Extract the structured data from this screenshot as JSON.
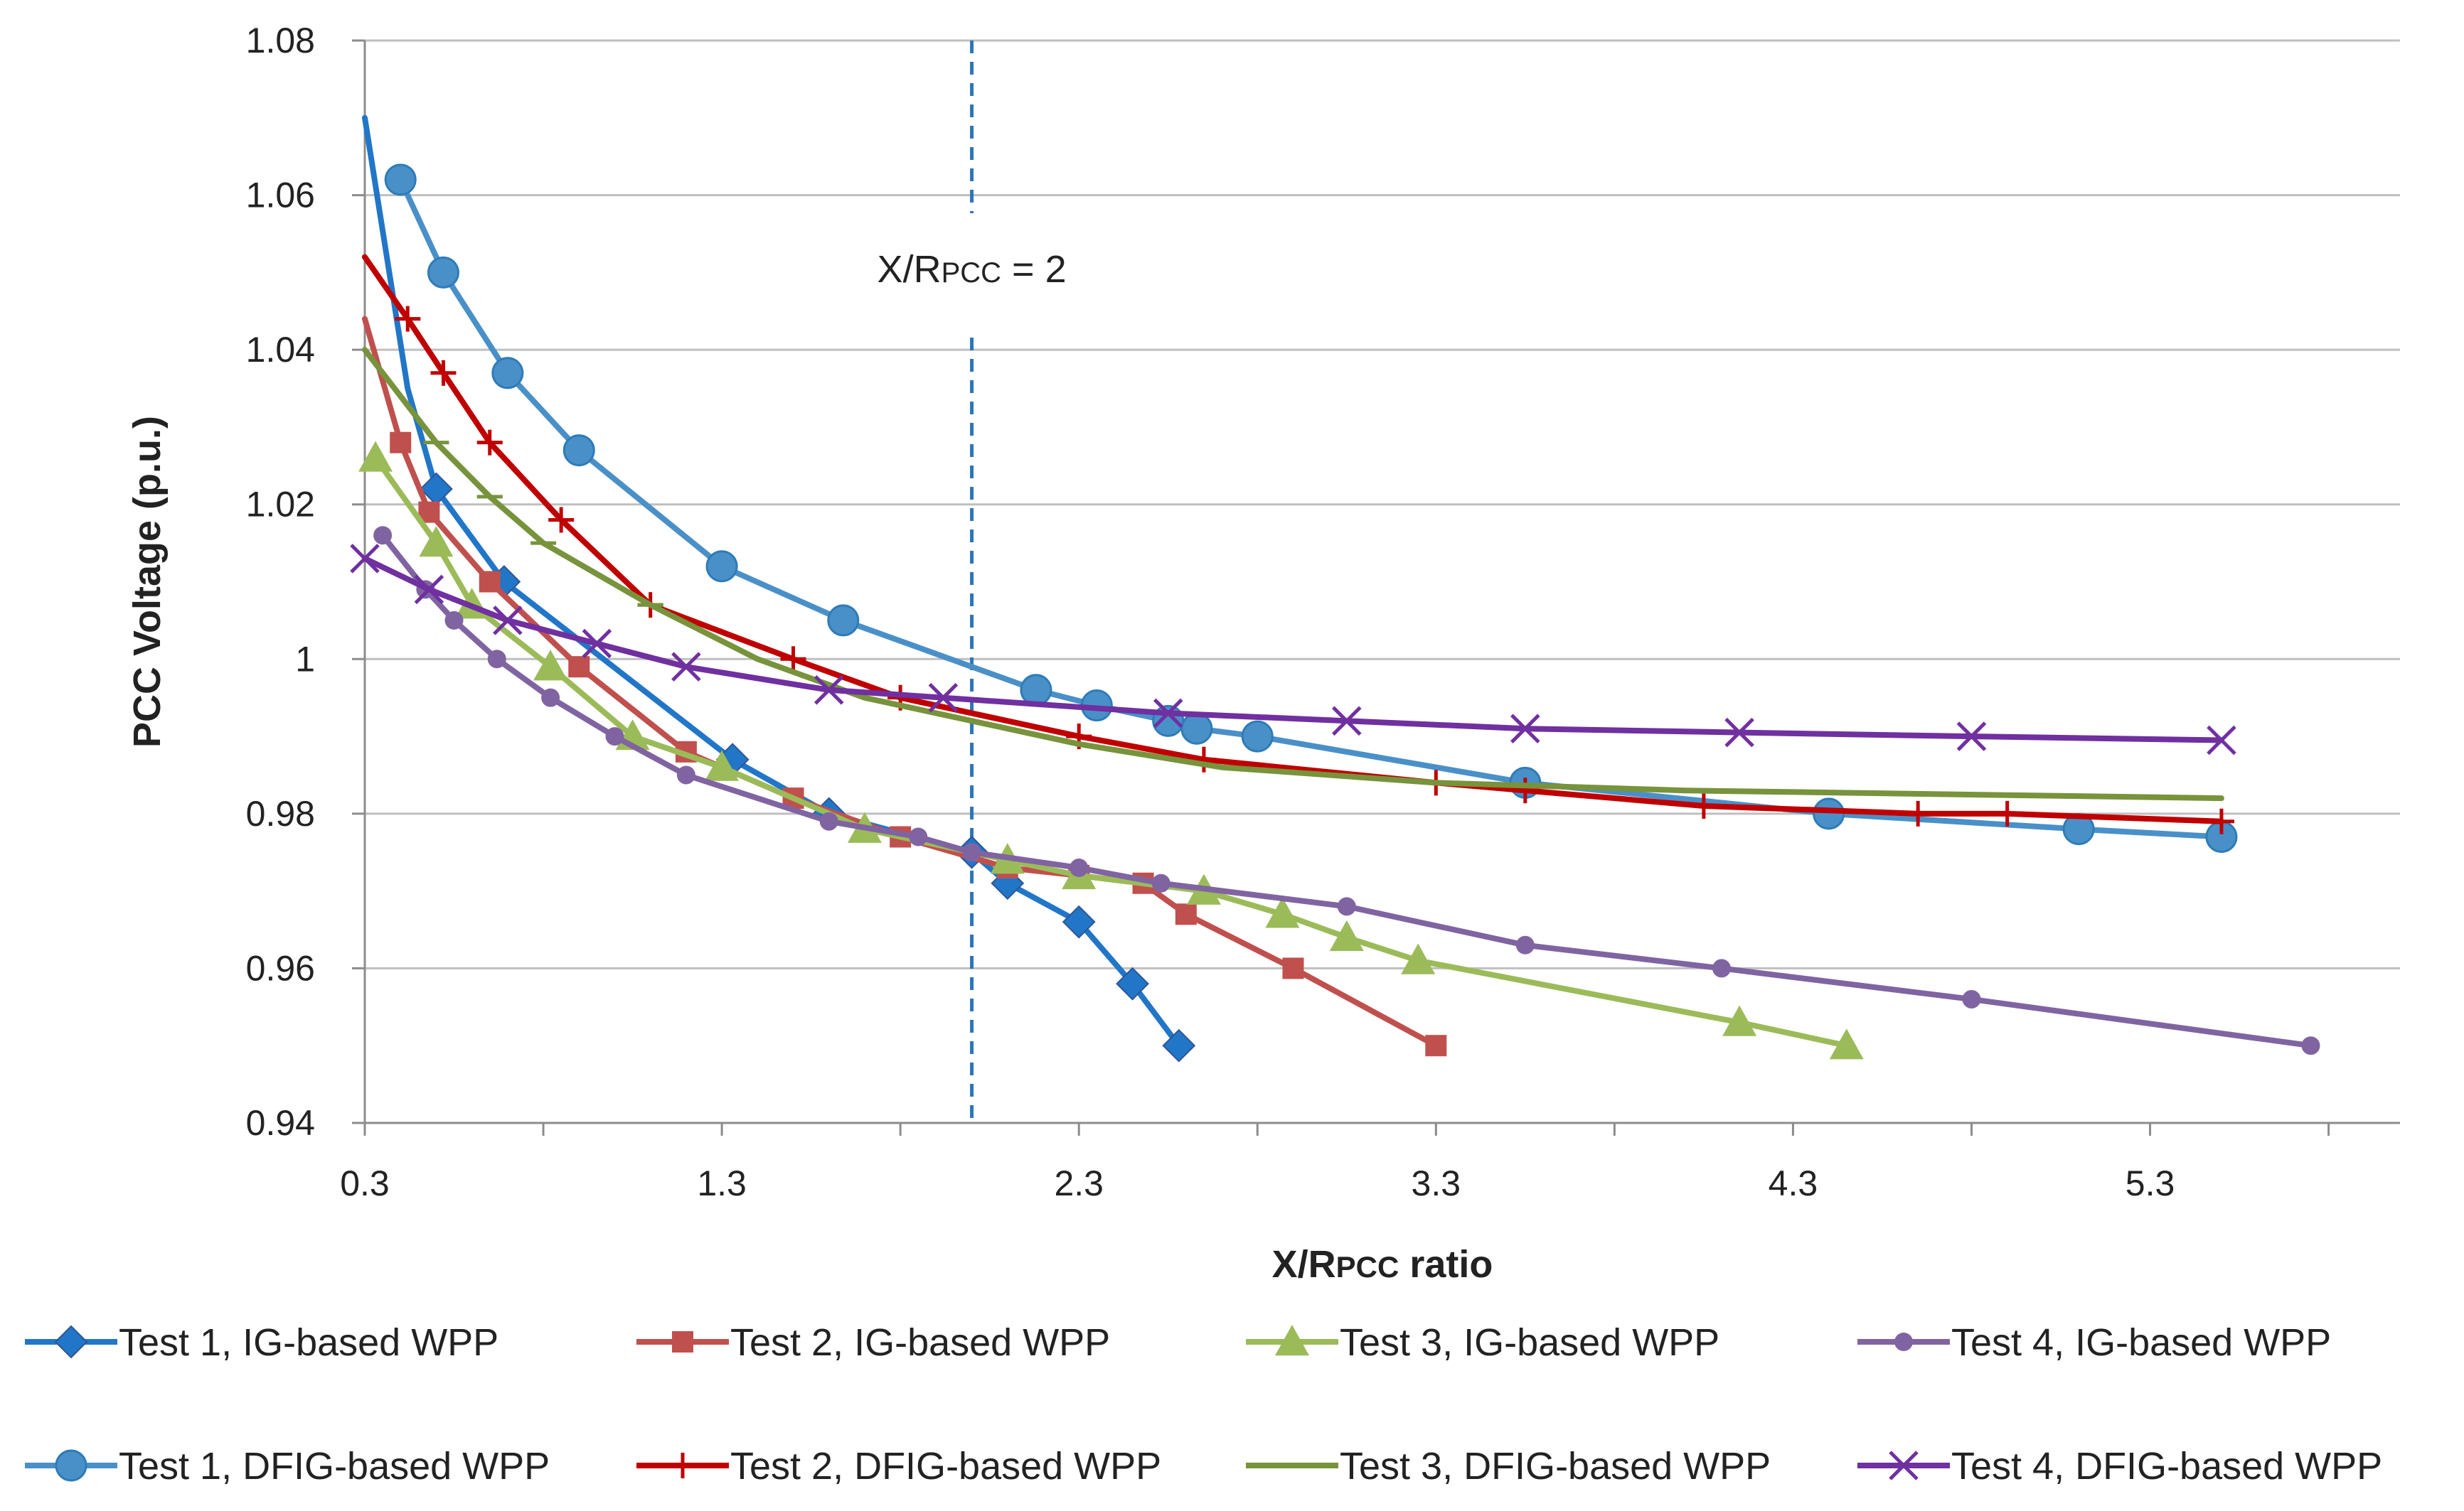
{
  "chart_data": {
    "type": "line",
    "xlabel_main": "X/R",
    "xlabel_sub": "PCC",
    "xlabel_tail": " ratio",
    "ylabel": "PCC Voltage (p.u.)",
    "xlim": [
      0.3,
      6.0
    ],
    "ylim": [
      0.94,
      1.08
    ],
    "x_ticks": [
      "0.3",
      "1.3",
      "2.3",
      "3.3",
      "4.3",
      "5.3"
    ],
    "y_ticks": [
      "0.94",
      "0.96",
      "0.98",
      "1",
      "1.02",
      "1.04",
      "1.06",
      "1.08"
    ],
    "grid": "horizontal",
    "legend_position": "bottom",
    "reference_line": {
      "x": 2.0,
      "style": "dashed",
      "color": "#2E75B6"
    },
    "annotation": {
      "main": "X/R",
      "sub": "PCC",
      "tail": " = 2",
      "x": 2.0,
      "y": 1.05
    },
    "series": [
      {
        "name": "Test 1, IG-based WPP",
        "color": "#2176C8",
        "marker": "diamond",
        "x": [
          0.3,
          0.42,
          0.5,
          0.69,
          1.33,
          1.6,
          2.0,
          2.1,
          2.3,
          2.45,
          2.58
        ],
        "y": [
          1.07,
          1.035,
          1.022,
          1.01,
          0.987,
          0.98,
          0.975,
          0.971,
          0.966,
          0.958,
          0.95
        ],
        "markers_x": [
          0.5,
          0.69,
          1.33,
          1.6,
          2.0,
          2.1,
          2.3,
          2.45,
          2.58
        ],
        "markers_y": [
          1.022,
          1.01,
          0.987,
          0.98,
          0.975,
          0.971,
          0.966,
          0.958,
          0.95
        ]
      },
      {
        "name": "Test 2, IG-based WPP",
        "color": "#C0504D",
        "marker": "square",
        "x": [
          0.3,
          0.4,
          0.48,
          0.65,
          0.9,
          1.2,
          1.5,
          1.8,
          2.1,
          2.3,
          2.48,
          2.6,
          2.9,
          3.3
        ],
        "y": [
          1.044,
          1.028,
          1.019,
          1.01,
          0.999,
          0.988,
          0.982,
          0.977,
          0.973,
          0.972,
          0.971,
          0.967,
          0.96,
          0.95
        ],
        "markers_x": [
          0.4,
          0.48,
          0.65,
          0.9,
          1.2,
          1.5,
          1.8,
          2.1,
          2.3,
          2.48,
          2.6,
          2.9,
          3.3
        ],
        "markers_y": [
          1.028,
          1.019,
          1.01,
          0.999,
          0.988,
          0.982,
          0.977,
          0.973,
          0.972,
          0.971,
          0.967,
          0.96,
          0.95
        ]
      },
      {
        "name": "Test 3, IG-based WPP",
        "color": "#9BBB59",
        "marker": "triangle",
        "x": [
          0.33,
          0.5,
          0.6,
          0.82,
          1.05,
          1.3,
          1.7,
          2.1,
          2.3,
          2.65,
          2.87,
          3.05,
          3.25,
          4.15,
          4.45
        ],
        "y": [
          1.026,
          1.015,
          1.007,
          0.999,
          0.99,
          0.986,
          0.978,
          0.974,
          0.972,
          0.97,
          0.967,
          0.964,
          0.961,
          0.953,
          0.95
        ],
        "markers_x": [
          0.33,
          0.5,
          0.6,
          0.82,
          1.05,
          1.3,
          1.7,
          2.1,
          2.3,
          2.65,
          2.87,
          3.05,
          3.25,
          4.15,
          4.45
        ],
        "markers_y": [
          1.026,
          1.015,
          1.007,
          0.999,
          0.99,
          0.986,
          0.978,
          0.974,
          0.972,
          0.97,
          0.967,
          0.964,
          0.961,
          0.953,
          0.95
        ]
      },
      {
        "name": "Test 4, IG-based WPP",
        "color": "#8064A2",
        "marker": "circle",
        "x": [
          0.35,
          0.47,
          0.55,
          0.67,
          0.82,
          1.0,
          1.2,
          1.6,
          1.85,
          2.0,
          2.3,
          2.53,
          3.05,
          3.55,
          4.1,
          4.8,
          5.75
        ],
        "y": [
          1.016,
          1.009,
          1.005,
          1.0,
          0.995,
          0.99,
          0.985,
          0.979,
          0.977,
          0.975,
          0.973,
          0.971,
          0.968,
          0.963,
          0.96,
          0.956,
          0.95
        ],
        "markers_x": [
          0.35,
          0.47,
          0.55,
          0.67,
          0.82,
          1.0,
          1.2,
          1.6,
          1.85,
          2.0,
          2.3,
          2.53,
          3.05,
          3.55,
          4.1,
          4.8,
          5.75
        ],
        "markers_y": [
          1.016,
          1.009,
          1.005,
          1.0,
          0.995,
          0.99,
          0.985,
          0.979,
          0.977,
          0.975,
          0.973,
          0.971,
          0.968,
          0.963,
          0.96,
          0.956,
          0.95
        ]
      },
      {
        "name": "Test 1, DFIG-based WPP",
        "color": "#4A90C8",
        "marker": "circle-large",
        "x": [
          0.4,
          0.52,
          0.7,
          0.9,
          1.3,
          1.64,
          2.18,
          2.35,
          2.55,
          2.63,
          2.8,
          3.55,
          4.4,
          5.1,
          5.5
        ],
        "y": [
          1.062,
          1.05,
          1.037,
          1.027,
          1.012,
          1.005,
          0.996,
          0.994,
          0.992,
          0.991,
          0.99,
          0.984,
          0.98,
          0.978,
          0.977
        ],
        "markers_x": [
          0.4,
          0.52,
          0.7,
          0.9,
          1.3,
          1.64,
          2.18,
          2.35,
          2.55,
          2.63,
          2.8,
          3.55,
          4.4,
          5.1,
          5.5
        ],
        "markers_y": [
          1.062,
          1.05,
          1.037,
          1.027,
          1.012,
          1.005,
          0.996,
          0.994,
          0.992,
          0.991,
          0.99,
          0.984,
          0.98,
          0.978,
          0.977
        ]
      },
      {
        "name": "Test 2, DFIG-based WPP",
        "color": "#C00000",
        "marker": "plus",
        "x": [
          0.3,
          0.42,
          0.52,
          0.65,
          0.85,
          1.1,
          1.5,
          1.8,
          2.0,
          2.3,
          2.65,
          3.3,
          3.55,
          4.05,
          4.65,
          4.9,
          5.5
        ],
        "y": [
          1.052,
          1.044,
          1.037,
          1.028,
          1.018,
          1.007,
          1.0,
          0.995,
          0.993,
          0.99,
          0.987,
          0.984,
          0.983,
          0.981,
          0.98,
          0.98,
          0.979
        ],
        "markers_x": [
          0.42,
          0.52,
          0.65,
          0.85,
          1.1,
          1.5,
          1.8,
          2.3,
          2.65,
          3.3,
          3.55,
          4.05,
          4.65,
          4.9,
          5.5
        ],
        "markers_y": [
          1.044,
          1.037,
          1.028,
          1.018,
          1.007,
          1.0,
          0.995,
          0.99,
          0.987,
          0.984,
          0.983,
          0.981,
          0.98,
          0.98,
          0.979
        ]
      },
      {
        "name": "Test 3, DFIG-based WPP",
        "color": "#77933C",
        "marker": "dash",
        "x": [
          0.3,
          0.5,
          0.65,
          0.8,
          1.1,
          1.4,
          1.7,
          2.0,
          2.3,
          2.7,
          3.3,
          4.0,
          5.5
        ],
        "y": [
          1.04,
          1.028,
          1.021,
          1.015,
          1.007,
          1.0,
          0.995,
          0.992,
          0.989,
          0.986,
          0.984,
          0.983,
          0.982
        ],
        "markers_x": [
          0.5,
          0.65,
          0.8,
          1.1
        ],
        "markers_y": [
          1.028,
          1.021,
          1.015,
          1.007
        ]
      },
      {
        "name": "Test 4, DFIG-based WPP",
        "color": "#7030A0",
        "marker": "x",
        "x": [
          0.3,
          0.48,
          0.7,
          0.95,
          1.2,
          1.6,
          1.92,
          2.55,
          3.05,
          3.55,
          4.15,
          4.8,
          5.5
        ],
        "y": [
          1.013,
          1.009,
          1.005,
          1.002,
          0.999,
          0.996,
          0.995,
          0.993,
          0.992,
          0.991,
          0.9905,
          0.99,
          0.9895
        ],
        "markers_x": [
          0.3,
          0.48,
          0.7,
          0.95,
          1.2,
          1.6,
          1.92,
          2.55,
          3.05,
          3.55,
          4.15,
          4.8,
          5.5
        ],
        "markers_y": [
          1.013,
          1.009,
          1.005,
          1.002,
          0.999,
          0.996,
          0.995,
          0.993,
          0.992,
          0.991,
          0.9905,
          0.99,
          0.9895
        ]
      }
    ]
  }
}
